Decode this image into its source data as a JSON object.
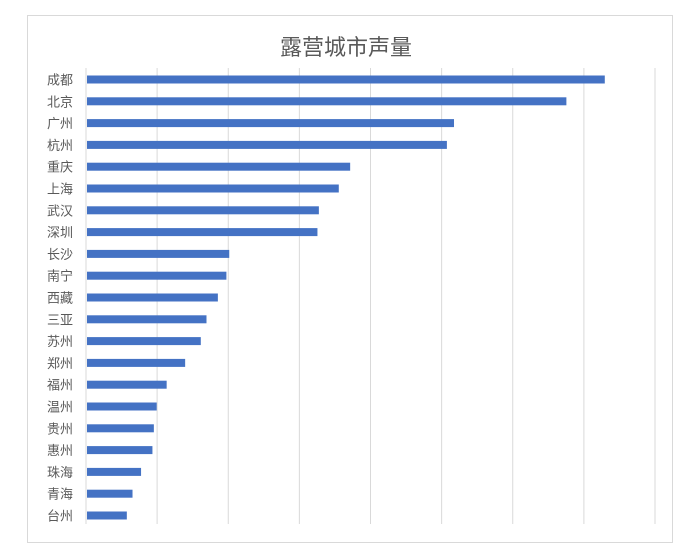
{
  "chart_data": {
    "type": "bar",
    "orientation": "horizontal",
    "title": "露营城市声量",
    "xlabel": "",
    "ylabel": "",
    "categories": [
      "成都",
      "北京",
      "广州",
      "杭州",
      "重庆",
      "上海",
      "武汉",
      "深圳",
      "长沙",
      "南宁",
      "西藏",
      "三亚",
      "苏州",
      "郑州",
      "福州",
      "温州",
      "贵州",
      "惠州",
      "珠海",
      "青海",
      "台州"
    ],
    "values": [
      3.64,
      3.37,
      2.58,
      2.53,
      1.85,
      1.77,
      1.63,
      1.62,
      1.0,
      0.98,
      0.92,
      0.84,
      0.8,
      0.69,
      0.56,
      0.49,
      0.47,
      0.46,
      0.38,
      0.32,
      0.28
    ],
    "xlim": [
      0,
      4
    ],
    "x_gridlines": 8,
    "x_tick_labels_visible": false,
    "grid": true,
    "legend": "none",
    "bar_color": "#4472C4"
  }
}
